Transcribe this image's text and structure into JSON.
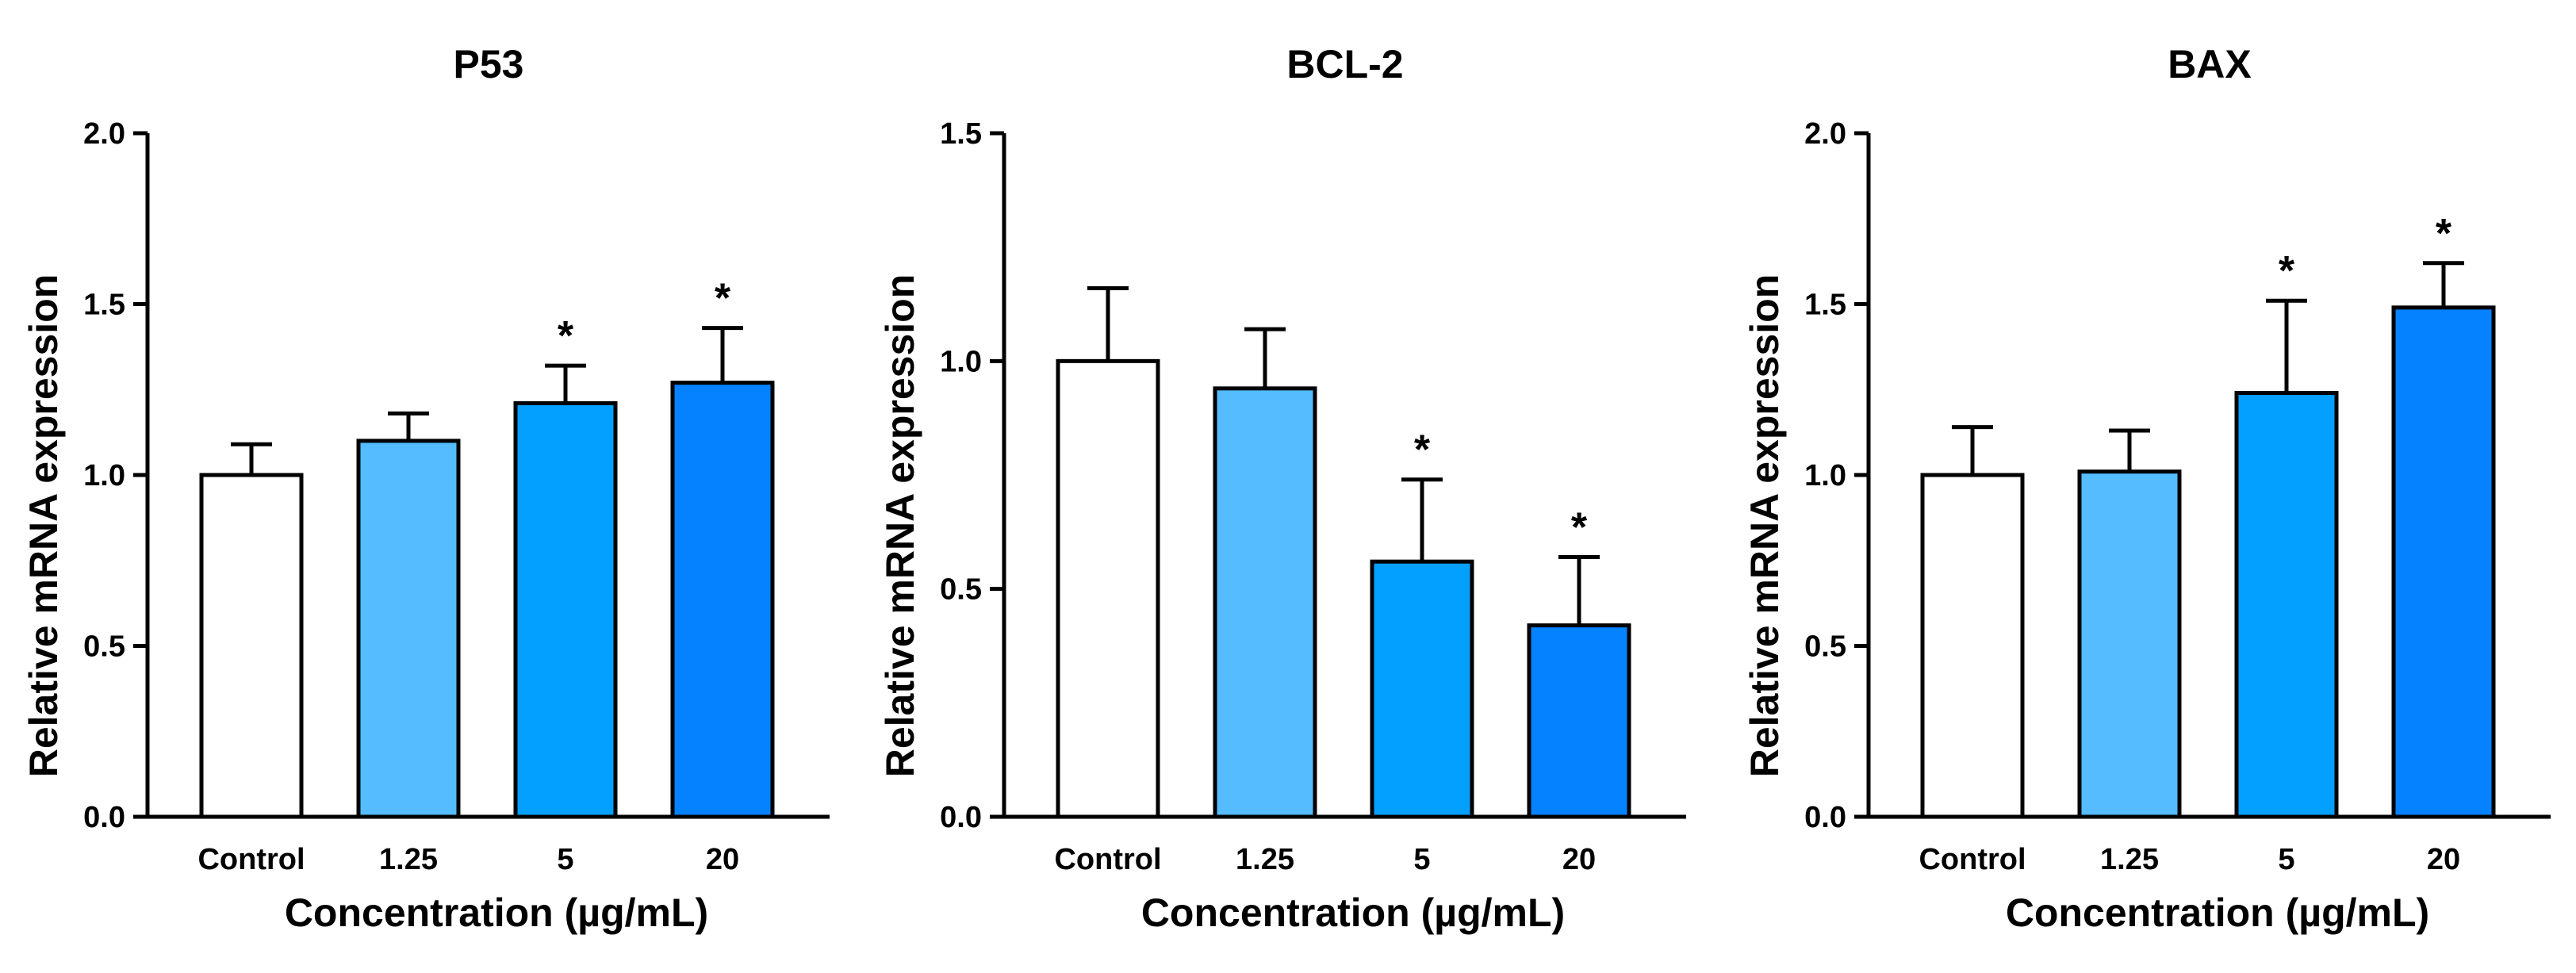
{
  "chart_data": [
    {
      "type": "bar",
      "title": "P53",
      "xlabel": "Concentration (µg/mL)",
      "ylabel": "Relative mRNA expression",
      "categories": [
        "Control",
        "1.25",
        "5",
        "20"
      ],
      "values": [
        1.0,
        1.1,
        1.21,
        1.27
      ],
      "errors": [
        0.09,
        0.08,
        0.11,
        0.16
      ],
      "significance": [
        "",
        "",
        "*",
        "*"
      ],
      "ylim": [
        0,
        2.0
      ],
      "yticks": [
        "0.0",
        "0.5",
        "1.0",
        "1.5",
        "2.0"
      ],
      "colors": [
        "#ffffff",
        "#55bcff",
        "#03a0ff",
        "#0582ff"
      ]
    },
    {
      "type": "bar",
      "title": "BCL-2",
      "xlabel": "Concentration (µg/mL)",
      "ylabel": "Relative mRNA expression",
      "categories": [
        "Control",
        "1.25",
        "5",
        "20"
      ],
      "values": [
        1.0,
        0.94,
        0.56,
        0.42
      ],
      "errors": [
        0.16,
        0.13,
        0.18,
        0.15
      ],
      "significance": [
        "",
        "",
        "*",
        "*"
      ],
      "ylim": [
        0,
        1.5
      ],
      "yticks": [
        "0.0",
        "0.5",
        "1.0",
        "1.5"
      ],
      "colors": [
        "#ffffff",
        "#55bcff",
        "#03a0ff",
        "#0582ff"
      ]
    },
    {
      "type": "bar",
      "title": "BAX",
      "xlabel": "Concentration (µg/mL)",
      "ylabel": "Relative mRNA expression",
      "categories": [
        "Control",
        "1.25",
        "5",
        "20"
      ],
      "values": [
        1.0,
        1.01,
        1.24,
        1.49
      ],
      "errors": [
        0.14,
        0.12,
        0.27,
        0.13
      ],
      "significance": [
        "",
        "",
        "*",
        "*"
      ],
      "ylim": [
        0,
        2.0
      ],
      "yticks": [
        "0.0",
        "0.5",
        "1.0",
        "1.5",
        "2.0"
      ],
      "colors": [
        "#ffffff",
        "#55bcff",
        "#03a0ff",
        "#0582ff"
      ]
    }
  ]
}
